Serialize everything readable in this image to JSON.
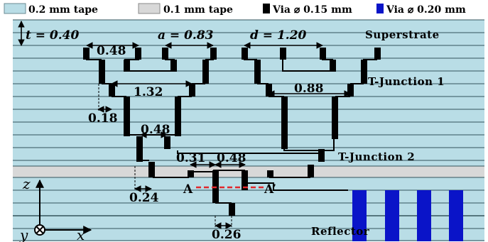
{
  "legend": {
    "tape_02": "0.2 mm tape",
    "tape_01": "0.1 mm tape",
    "via_015": "Via ⌀ 0.15 mm",
    "via_020": "Via ⌀ 0.20 mm",
    "colors": {
      "tape_02": "#b9dde6",
      "tape_01": "#d8d8d8",
      "via_015": "#000000",
      "via_020": "#0a14c8"
    }
  },
  "labels": {
    "t": "t = 0.40",
    "a": "a = 0.83",
    "d": "d = 1.20",
    "superstrate": "Superstrate",
    "tjunction1": "T-Junction 1",
    "tjunction2": "T-Junction 2",
    "reflector": "Reflector",
    "a_mark": "A",
    "a_prime": "A’"
  },
  "dims": {
    "d048_top": "0.48",
    "d132": "1.32",
    "d088": "0.88",
    "d018": "0.18",
    "d048_mid": "0.48",
    "d031": "0.31",
    "d048_low": "0.48",
    "d024": "0.24",
    "d026": "0.26"
  },
  "axes": {
    "z": "z",
    "x": "x",
    "y": "y"
  }
}
